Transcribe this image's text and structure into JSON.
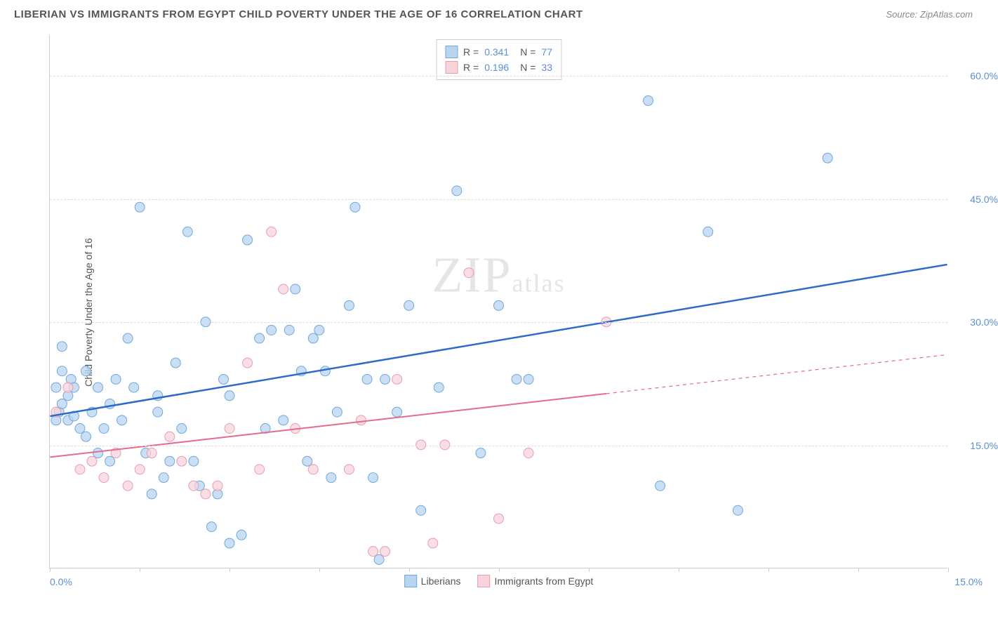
{
  "header": {
    "title": "LIBERIAN VS IMMIGRANTS FROM EGYPT CHILD POVERTY UNDER THE AGE OF 16 CORRELATION CHART",
    "source": "Source: ZipAtlas.com"
  },
  "chart": {
    "type": "scatter",
    "ylabel": "Child Poverty Under the Age of 16",
    "watermark": "ZIPatlas",
    "background_color": "#ffffff",
    "grid_color": "#dddddd",
    "axis_color": "#cccccc",
    "label_color": "#555555",
    "value_color": "#5b8fd6",
    "xlim": [
      0,
      15
    ],
    "ylim": [
      0,
      65
    ],
    "xtick_labels": {
      "left": "0.0%",
      "right": "15.0%"
    },
    "xtick_positions": [
      0,
      1.5,
      3.0,
      4.5,
      6.0,
      7.5,
      9.0,
      10.5,
      12.0,
      13.5,
      15.0
    ],
    "ytick_positions": [
      15,
      30,
      45,
      60
    ],
    "ytick_labels": [
      "15.0%",
      "30.0%",
      "45.0%",
      "60.0%"
    ],
    "series": [
      {
        "name": "Liberians",
        "color_fill": "#b8d4f0",
        "color_stroke": "#6fa8dc",
        "line_color": "#2e6bc7",
        "R": "0.341",
        "N": "77",
        "marker_radius": 7,
        "line_width": 2.5,
        "trend": {
          "x1": 0,
          "y1": 18.5,
          "x2": 15,
          "y2": 37,
          "dashed_from": null
        },
        "points": [
          [
            0.1,
            22
          ],
          [
            0.15,
            19
          ],
          [
            0.2,
            27
          ],
          [
            0.3,
            18
          ],
          [
            0.3,
            21
          ],
          [
            0.35,
            23
          ],
          [
            0.4,
            18.5
          ],
          [
            0.1,
            18
          ],
          [
            0.2,
            20
          ],
          [
            0.5,
            17
          ],
          [
            0.6,
            24
          ],
          [
            0.7,
            19
          ],
          [
            0.8,
            22
          ],
          [
            0.9,
            17
          ],
          [
            1.0,
            20
          ],
          [
            1.1,
            23
          ],
          [
            1.2,
            18
          ],
          [
            0.4,
            22
          ],
          [
            1.3,
            28
          ],
          [
            1.4,
            22
          ],
          [
            1.5,
            44
          ],
          [
            1.6,
            14
          ],
          [
            1.7,
            9
          ],
          [
            1.8,
            19
          ],
          [
            1.9,
            11
          ],
          [
            0.2,
            24
          ],
          [
            2.0,
            13
          ],
          [
            2.1,
            25
          ],
          [
            2.2,
            17
          ],
          [
            2.3,
            41
          ],
          [
            2.4,
            13
          ],
          [
            2.5,
            10
          ],
          [
            2.7,
            5
          ],
          [
            2.8,
            9
          ],
          [
            3.0,
            21
          ],
          [
            3.0,
            3
          ],
          [
            3.2,
            4
          ],
          [
            3.3,
            40
          ],
          [
            3.5,
            28
          ],
          [
            3.7,
            29
          ],
          [
            3.9,
            18
          ],
          [
            4.0,
            29
          ],
          [
            4.1,
            34
          ],
          [
            4.2,
            24
          ],
          [
            4.3,
            13
          ],
          [
            4.5,
            29
          ],
          [
            4.6,
            24
          ],
          [
            4.8,
            19
          ],
          [
            5.0,
            32
          ],
          [
            5.1,
            44
          ],
          [
            5.3,
            23
          ],
          [
            5.4,
            11
          ],
          [
            5.5,
            1
          ],
          [
            5.6,
            23
          ],
          [
            5.8,
            19
          ],
          [
            6.0,
            32
          ],
          [
            6.2,
            7
          ],
          [
            6.5,
            22
          ],
          [
            6.8,
            46
          ],
          [
            7.2,
            14
          ],
          [
            7.5,
            32
          ],
          [
            7.8,
            23
          ],
          [
            8.0,
            23
          ],
          [
            10.0,
            57
          ],
          [
            10.2,
            10
          ],
          [
            11.0,
            41
          ],
          [
            11.5,
            7
          ],
          [
            13.0,
            50
          ],
          [
            3.6,
            17
          ],
          [
            4.4,
            28
          ],
          [
            1.0,
            13
          ],
          [
            2.6,
            30
          ],
          [
            0.8,
            14
          ],
          [
            1.8,
            21
          ],
          [
            0.6,
            16
          ],
          [
            2.9,
            23
          ],
          [
            4.7,
            11
          ]
        ]
      },
      {
        "name": "Immigrants from Egypt",
        "color_fill": "#f7d4dc",
        "color_stroke": "#e89cb0",
        "line_color": "#e56b8a",
        "R": "0.196",
        "N": "33",
        "marker_radius": 7,
        "line_width": 2,
        "trend": {
          "x1": 0,
          "y1": 13.5,
          "x2": 15,
          "y2": 26,
          "dashed_from": 9.3
        },
        "points": [
          [
            0.1,
            19
          ],
          [
            0.3,
            22
          ],
          [
            0.5,
            12
          ],
          [
            0.7,
            13
          ],
          [
            0.9,
            11
          ],
          [
            1.1,
            14
          ],
          [
            1.3,
            10
          ],
          [
            1.5,
            12
          ],
          [
            1.7,
            14
          ],
          [
            2.0,
            16
          ],
          [
            2.2,
            13
          ],
          [
            2.4,
            10
          ],
          [
            2.6,
            9
          ],
          [
            2.8,
            10
          ],
          [
            3.0,
            17
          ],
          [
            3.3,
            25
          ],
          [
            3.5,
            12
          ],
          [
            3.7,
            41
          ],
          [
            3.9,
            34
          ],
          [
            4.1,
            17
          ],
          [
            4.4,
            12
          ],
          [
            5.0,
            12
          ],
          [
            5.2,
            18
          ],
          [
            5.4,
            2
          ],
          [
            5.6,
            2
          ],
          [
            6.2,
            15
          ],
          [
            6.4,
            3
          ],
          [
            6.6,
            15
          ],
          [
            7.0,
            36
          ],
          [
            7.5,
            6
          ],
          [
            8.0,
            14
          ],
          [
            9.3,
            30
          ],
          [
            5.8,
            23
          ]
        ]
      }
    ],
    "bottom_legend": [
      "Liberians",
      "Immigrants from Egypt"
    ]
  }
}
